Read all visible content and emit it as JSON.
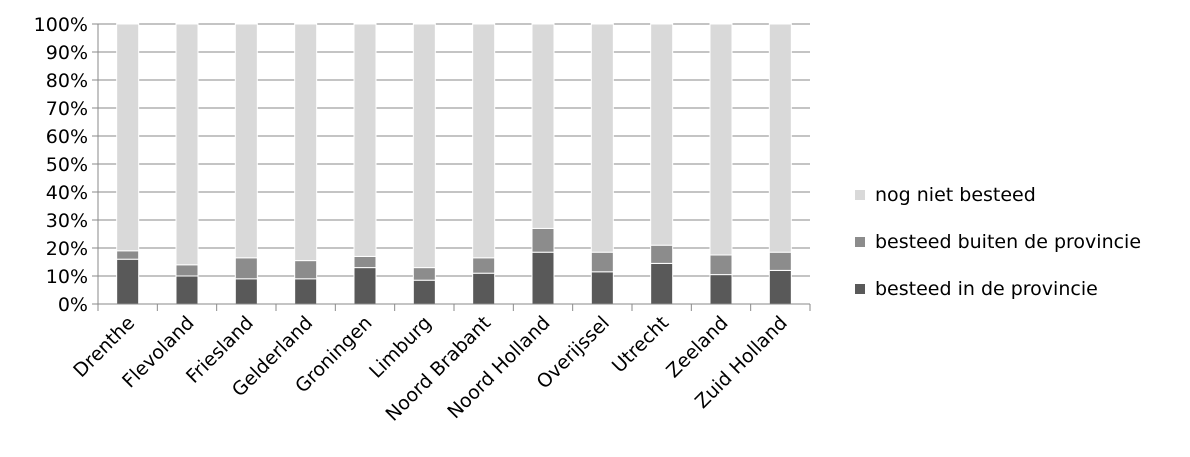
{
  "chart_data": {
    "type": "bar",
    "stacked": true,
    "percent_stacked": true,
    "categories": [
      "Drenthe",
      "Flevoland",
      "Friesland",
      "Gelderland",
      "Groningen",
      "Limburg",
      "Noord Brabant",
      "Noord Holland",
      "Overijssel",
      "Utrecht",
      "Zeeland",
      "Zuid Holland"
    ],
    "series": [
      {
        "name": "besteed in de provincie",
        "color": "#595959",
        "values": [
          16,
          10,
          9,
          9,
          13,
          8.5,
          11,
          18.5,
          11.5,
          14.5,
          10.5,
          12
        ]
      },
      {
        "name": "besteed buiten de provincie",
        "color": "#8c8c8c",
        "values": [
          3,
          4,
          7.5,
          6.5,
          4,
          4.5,
          5.5,
          8.5,
          7,
          6.5,
          7,
          6.5
        ]
      },
      {
        "name": "nog niet besteed",
        "color": "#d9d9d9",
        "values": [
          81,
          86,
          83.5,
          84.5,
          83,
          87,
          83.5,
          73,
          81.5,
          79,
          82.5,
          81.5
        ]
      }
    ],
    "yticks": [
      "0%",
      "10%",
      "20%",
      "30%",
      "40%",
      "50%",
      "60%",
      "70%",
      "80%",
      "90%",
      "100%"
    ],
    "ylim": [
      0,
      100
    ],
    "grid": true,
    "legend_position": "right",
    "legend_order": [
      "nog niet besteed",
      "besteed buiten de provincie",
      "besteed in de provincie"
    ],
    "title": "",
    "xlabel": "",
    "ylabel": ""
  }
}
